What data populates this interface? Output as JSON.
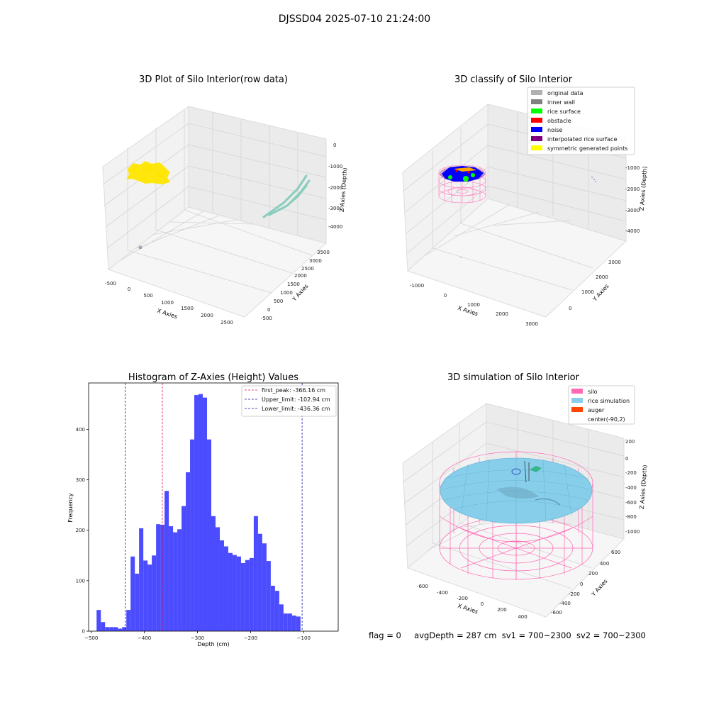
{
  "figure": {
    "suptitle": "DJSSD04 2025-07-10 21:24:00"
  },
  "panels": {
    "raw": {
      "title": "3D Plot of Silo Interior(row data)",
      "xlabel": "X Axies",
      "ylabel": "Y Axies",
      "zlabel": "Z Axies (Depth)",
      "xticks": [
        "-500",
        "0",
        "500",
        "1000",
        "1500",
        "2000",
        "2500"
      ],
      "yticks": [
        "-500",
        "0",
        "500",
        "1000",
        "1500",
        "2000",
        "2500",
        "3000",
        "3500"
      ],
      "zticks": [
        "0",
        "-1000",
        "-2000",
        "-3000",
        "-4000"
      ],
      "colors": {
        "points": "#ffe600",
        "teal": "#7fcab9",
        "grey": "#9aa6b4"
      }
    },
    "classify": {
      "title": "3D classify of Silo Interior",
      "xlabel": "X Axies",
      "ylabel": "Y Axies",
      "zlabel": "Z Axies (Depth)",
      "xticks": [
        "-1000",
        "0",
        "1000",
        "2000",
        "3000"
      ],
      "yticks": [
        "0",
        "1000",
        "2000",
        "3000"
      ],
      "zticks": [
        "-1000",
        "-2000",
        "-3000",
        "-4000"
      ],
      "legend": [
        {
          "label": "original data",
          "color": "#b0b0b0"
        },
        {
          "label": "inner wall",
          "color": "#808080"
        },
        {
          "label": "rice surface",
          "color": "#00ff00"
        },
        {
          "label": "obstacle",
          "color": "#ff0000"
        },
        {
          "label": "noise",
          "color": "#0000ff"
        },
        {
          "label": "interpolated rice surface",
          "color": "#800080"
        },
        {
          "label": "symmetric generated points",
          "color": "#ffff00"
        }
      ]
    },
    "simulation": {
      "title": "3D simulation of Silo Interior",
      "xlabel": "X Axies",
      "ylabel": "Y Axies",
      "zlabel": "Z Axies (Depth)",
      "xticks": [
        "-600",
        "-400",
        "-200",
        "0",
        "200",
        "400"
      ],
      "yticks": [
        "-600",
        "-400",
        "-200",
        "0",
        "200",
        "400",
        "600"
      ],
      "zticks": [
        "200",
        "0",
        "-200",
        "-400",
        "-600",
        "-800",
        "-1000"
      ],
      "legend": [
        {
          "label": "silo",
          "color": "#ff69b4"
        },
        {
          "label": "rice simulation",
          "color": "#87ceeb"
        },
        {
          "label": "auger",
          "color": "#ff4500"
        },
        {
          "label": "center(-90,2)",
          "color": ""
        }
      ],
      "footer": {
        "flag": "flag = 0",
        "avg": "avgDepth = 287 cm",
        "sv1": "sv1 = 700~2300",
        "sv2": "sv2 = 700~2300"
      }
    }
  },
  "chart_data": {
    "type": "bar",
    "title": "Histogram of Z-Axies (Height) Values",
    "xlabel": "Depth (cm)",
    "ylabel": "Frequency",
    "xlim": [
      -505,
      -35
    ],
    "ylim": [
      0,
      492
    ],
    "xticks": [
      -500,
      -400,
      -300,
      -200,
      -100
    ],
    "yticks": [
      0,
      100,
      200,
      300,
      400
    ],
    "bin_start": -490,
    "bin_width": 8.0,
    "values": [
      42,
      18,
      8,
      8,
      8,
      5,
      8,
      42,
      148,
      114,
      204,
      140,
      132,
      150,
      212,
      211,
      278,
      208,
      196,
      202,
      248,
      315,
      380,
      468,
      470,
      463,
      380,
      228,
      206,
      180,
      168,
      155,
      151,
      148,
      135,
      141,
      145,
      228,
      193,
      174,
      139,
      90,
      80,
      53,
      35,
      35,
      31,
      29
    ],
    "bar_color": "#4c4cff",
    "vlines": [
      {
        "x": -366.16,
        "label": "first_peak: -366.16 cm",
        "color": "#e6194b"
      },
      {
        "x": -102.94,
        "label": "Upper_limit: -102.94 cm",
        "color": "#1a1aa6"
      },
      {
        "x": -436.36,
        "label": "Lower_limit: -436.36 cm",
        "color": "#1a1aa6"
      }
    ],
    "legend_position": "top-right",
    "grid": false
  }
}
